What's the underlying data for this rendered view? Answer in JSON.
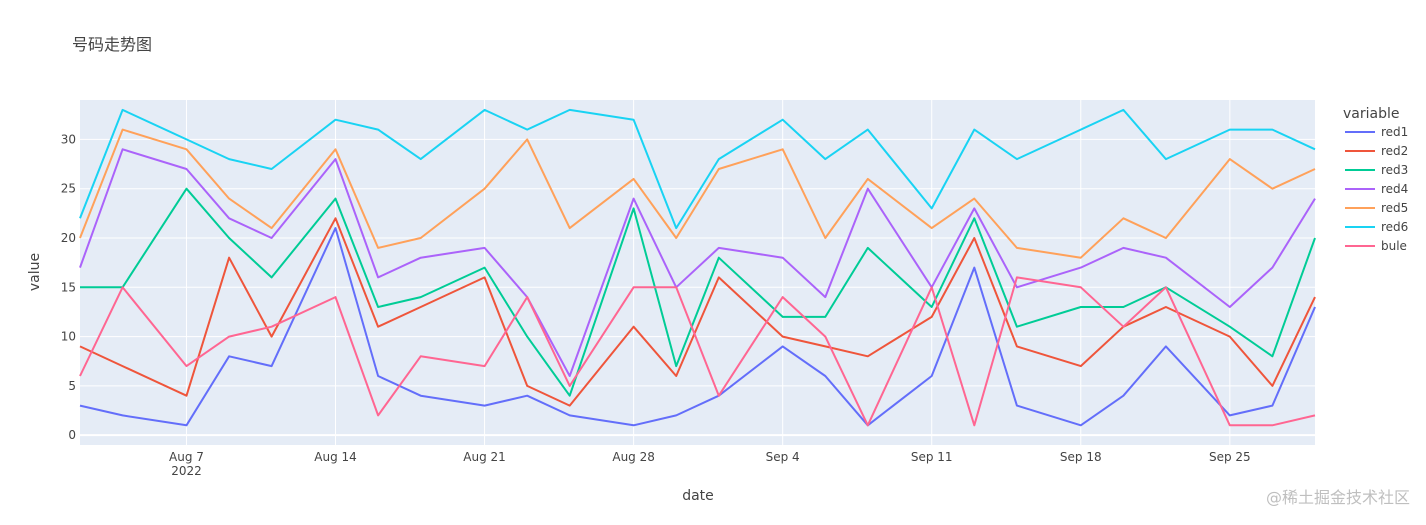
{
  "chart_data": {
    "type": "line",
    "title": "号码走势图",
    "xlabel": "date",
    "ylabel": "value",
    "ylim": [
      -1,
      34
    ],
    "yticks": [
      0,
      5,
      10,
      15,
      20,
      25,
      30
    ],
    "xticks": [
      {
        "day": 7,
        "label": "Aug 7",
        "sublabel": "2022"
      },
      {
        "day": 14,
        "label": "Aug 14"
      },
      {
        "day": 21,
        "label": "Aug 21"
      },
      {
        "day": 28,
        "label": "Aug 28"
      },
      {
        "day": 35,
        "label": "Sep 4"
      },
      {
        "day": 42,
        "label": "Sep 11"
      },
      {
        "day": 49,
        "label": "Sep 18"
      },
      {
        "day": 56,
        "label": "Sep 25"
      }
    ],
    "x": [
      2,
      4,
      7,
      9,
      11,
      14,
      16,
      18,
      21,
      23,
      25,
      28,
      30,
      32,
      35,
      37,
      39,
      42,
      44,
      46,
      49,
      51,
      53,
      56,
      58,
      60
    ],
    "legend_title": "variable",
    "series": [
      {
        "name": "red1",
        "color": "#636efa",
        "values": [
          3,
          2,
          1,
          8,
          7,
          21,
          6,
          4,
          3,
          4,
          2,
          1,
          2,
          4,
          9,
          6,
          1,
          6,
          17,
          3,
          1,
          4,
          9,
          2,
          3,
          13
        ]
      },
      {
        "name": "red2",
        "color": "#ef553b",
        "values": [
          9,
          7,
          4,
          18,
          10,
          22,
          11,
          13,
          16,
          5,
          3,
          11,
          6,
          16,
          10,
          9,
          8,
          12,
          20,
          9,
          7,
          11,
          13,
          10,
          5,
          14
        ]
      },
      {
        "name": "red3",
        "color": "#00cc96",
        "values": [
          15,
          15,
          25,
          20,
          16,
          24,
          13,
          14,
          17,
          10,
          4,
          23,
          7,
          18,
          12,
          12,
          19,
          13,
          22,
          11,
          13,
          13,
          15,
          11,
          8,
          20
        ]
      },
      {
        "name": "red4",
        "color": "#ab63fa",
        "values": [
          17,
          29,
          27,
          22,
          20,
          28,
          16,
          18,
          19,
          14,
          6,
          24,
          15,
          19,
          18,
          14,
          25,
          15,
          23,
          15,
          17,
          19,
          18,
          13,
          17,
          24
        ]
      },
      {
        "name": "red5",
        "color": "#ffa15a",
        "values": [
          20,
          31,
          29,
          24,
          21,
          29,
          19,
          20,
          25,
          30,
          21,
          26,
          20,
          27,
          29,
          20,
          26,
          21,
          24,
          19,
          18,
          22,
          20,
          28,
          25,
          27
        ]
      },
      {
        "name": "red6",
        "color": "#19d3f3",
        "values": [
          22,
          33,
          30,
          28,
          27,
          32,
          31,
          28,
          33,
          31,
          33,
          32,
          21,
          28,
          32,
          28,
          31,
          23,
          31,
          28,
          31,
          33,
          28,
          31,
          31,
          29
        ]
      },
      {
        "name": "bule",
        "color": "#ff6692",
        "values": [
          6,
          15,
          7,
          10,
          11,
          14,
          2,
          8,
          7,
          14,
          5,
          15,
          15,
          4,
          14,
          10,
          1,
          15,
          1,
          16,
          15,
          11,
          15,
          1,
          1,
          2
        ]
      }
    ]
  },
  "watermark": "@稀土掘金技术社区"
}
